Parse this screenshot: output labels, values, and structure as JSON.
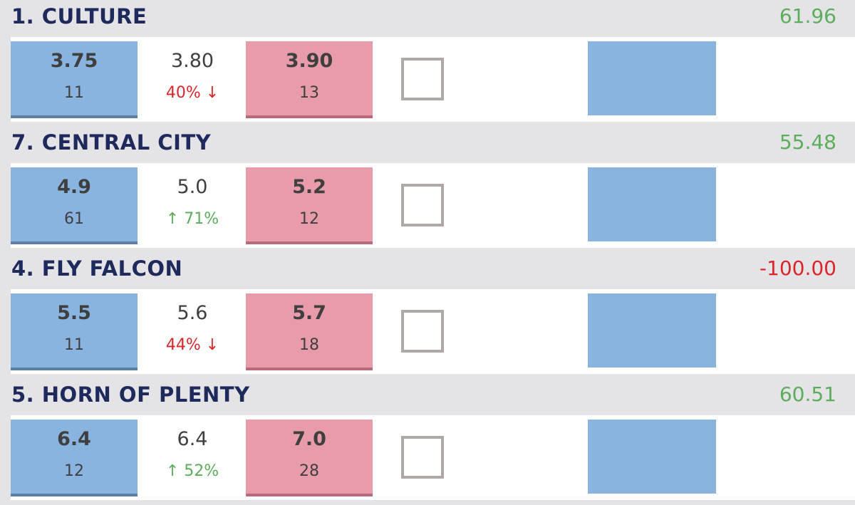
{
  "runners": [
    {
      "name": "1. CULTURE",
      "profit": "61.96",
      "profit_color": "#5cad5c",
      "back_price": "3.75",
      "back_size": "11",
      "mid_price": "3.80",
      "change": "40% ↓",
      "change_color": "#d9262b",
      "lay_price": "3.90",
      "lay_size": "13"
    },
    {
      "name": "7. CENTRAL CITY",
      "profit": "55.48",
      "profit_color": "#5cad5c",
      "back_price": "4.9",
      "back_size": "61",
      "mid_price": "5.0",
      "change": "↑ 71%",
      "change_color": "#5cad5c",
      "lay_price": "5.2",
      "lay_size": "12"
    },
    {
      "name": "4. FLY FALCON",
      "profit": "-100.00",
      "profit_color": "#d9262b",
      "back_price": "5.5",
      "back_size": "11",
      "mid_price": "5.6",
      "change": "44% ↓",
      "change_color": "#d9262b",
      "lay_price": "5.7",
      "lay_size": "18"
    },
    {
      "name": "5. HORN OF PLENTY",
      "profit": "60.51",
      "profit_color": "#5cad5c",
      "back_price": "6.4",
      "back_size": "12",
      "mid_price": "6.4",
      "change": "↑ 52%",
      "change_color": "#5cad5c",
      "lay_price": "7.0",
      "lay_size": "28"
    }
  ]
}
